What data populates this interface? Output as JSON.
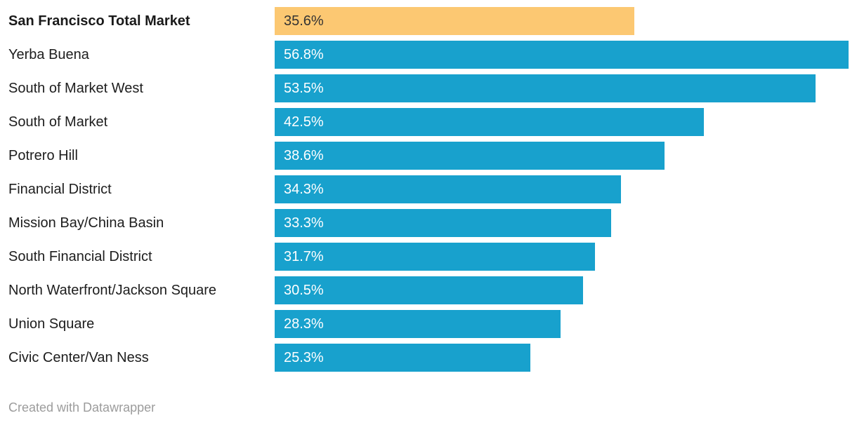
{
  "chart_data": {
    "type": "bar",
    "orientation": "horizontal",
    "title": "",
    "xlabel": "",
    "ylabel": "",
    "categories": [
      "San Francisco Total Market",
      "Yerba Buena",
      "South of Market West",
      "South of Market",
      "Potrero Hill",
      "Financial District",
      "Mission Bay/China Basin",
      "South Financial District",
      "North Waterfront/Jackson Square",
      "Union Square",
      "Civic Center/Van Ness"
    ],
    "values": [
      35.6,
      56.8,
      53.5,
      42.5,
      38.6,
      34.3,
      33.3,
      31.7,
      30.5,
      28.3,
      25.3
    ],
    "value_labels": [
      "35.6%",
      "56.8%",
      "53.5%",
      "42.5%",
      "38.6%",
      "34.3%",
      "33.3%",
      "31.7%",
      "30.5%",
      "28.3%",
      "25.3%"
    ],
    "highlight_index": 0,
    "xlim": [
      0,
      56.8
    ],
    "grid": false,
    "legend": false,
    "axis_ticks_visible": false
  },
  "footer": {
    "credit": "Created with Datawrapper"
  },
  "colors": {
    "bar": "#18a1cd",
    "highlight_bar": "#fcc872",
    "value_text": "#ffffff",
    "highlight_value_text": "#333333",
    "label_text": "#1d1d1d",
    "highlight_label_text": "#1a1a1a",
    "footer_text": "#9c9c9c",
    "background": "#ffffff"
  }
}
